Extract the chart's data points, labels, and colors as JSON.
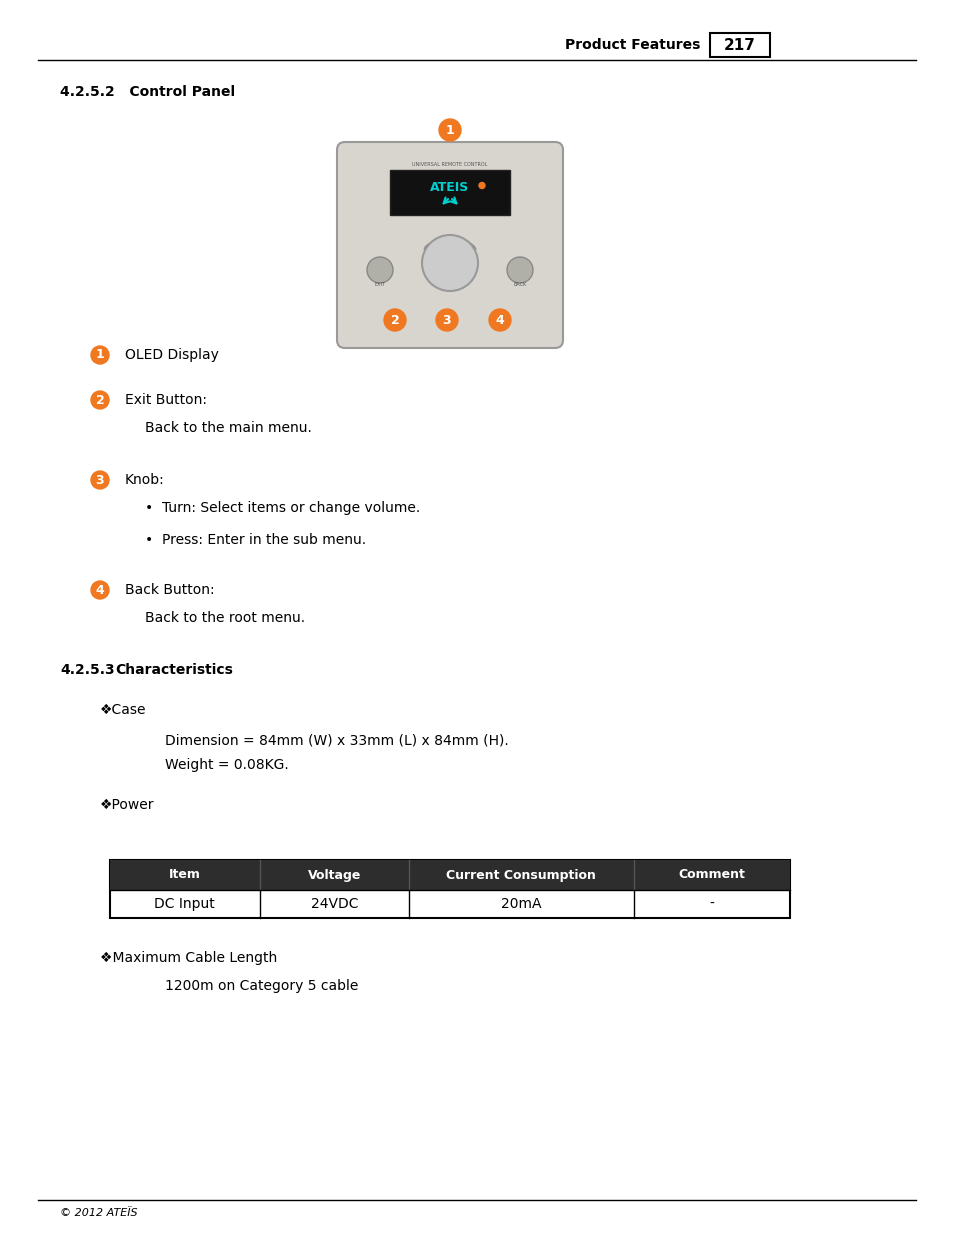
{
  "page_title_right": "Product Features",
  "page_number": "217",
  "section_title": "4.2.5.2   Control Panel",
  "section2_title": "4.2.5.3",
  "section2_label": "Characteristics",
  "bullet_items": [
    {
      "num": "1",
      "label": "OLED Display",
      "sub": []
    },
    {
      "num": "2",
      "label": "Exit Button:",
      "sub": [
        "Back to the main menu."
      ]
    },
    {
      "num": "3",
      "label": "Knob:",
      "sub": [
        "Turn: Select items or change volume.",
        "Press: Enter in the sub menu."
      ]
    },
    {
      "num": "4",
      "label": "Back Button:",
      "sub": [
        "Back to the root menu."
      ]
    }
  ],
  "case_items": [
    "Dimension = 84mm (W) x 33mm (L) x 84mm (H).",
    "Weight = 0.08KG."
  ],
  "table_headers": [
    "Item",
    "Voltage",
    "Current Consumption",
    "Comment"
  ],
  "table_rows": [
    [
      "DC Input",
      "24VDC",
      "20mA",
      "-"
    ]
  ],
  "max_cable_label": "Maximum Cable Length",
  "max_cable_value": "1200m on Category 5 cable",
  "footer": "© 2012 ATEÏS",
  "orange_color": "#F07820",
  "dark_header_color": "#2D2D2D",
  "bg_color": "#FFFFFF",
  "text_color": "#000000"
}
